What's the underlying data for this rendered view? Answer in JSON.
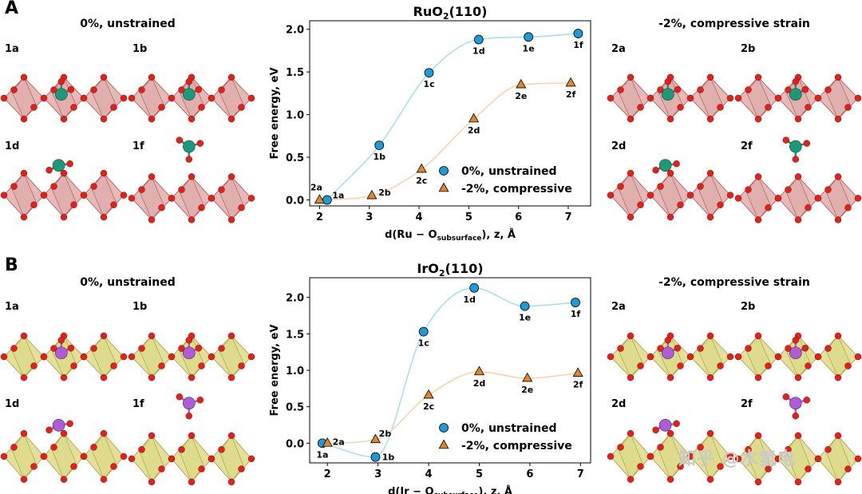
{
  "panels": [
    {
      "letter": "A",
      "left_title": "0%, unstrained",
      "right_title": "-2%, compressive strain",
      "left_subfigs": [
        "1a",
        "1b",
        "1d",
        "1f"
      ],
      "right_subfigs": [
        "2a",
        "2b",
        "2d",
        "2f"
      ],
      "metal": "Ru",
      "slab_color": "#d9a3a0",
      "slab_edge": "#b4504d",
      "metal_color": "#1b9a7a"
    },
    {
      "letter": "B",
      "left_title": "0%, unstrained",
      "right_title": "-2%, compressive strain",
      "left_subfigs": [
        "1a",
        "1b",
        "1d",
        "1f"
      ],
      "right_subfigs": [
        "2a",
        "2b",
        "2d",
        "2f"
      ],
      "metal": "Ir",
      "slab_color": "#d8d67a",
      "slab_edge": "#a89b3a",
      "metal_color": "#b05bd8"
    }
  ],
  "colors": {
    "unstrained_marker": "#1e9bd7",
    "compressive_marker": "#e0862f",
    "unstrained_curve": "#a9ddf0",
    "compressive_curve": "#f7d3ad",
    "oxygen": "#e0211c"
  },
  "chart_data": [
    {
      "type": "line",
      "title_main": "RuO",
      "title_sub": "2",
      "title_suffix": "(110)",
      "xlabel_main": "d(Ru − O",
      "xlabel_sub": "subsurface",
      "xlabel_suffix": "), z, Å",
      "ylabel": "Free energy, eV",
      "xlim": [
        1.8,
        7.45
      ],
      "ylim": [
        -0.07,
        2.1
      ],
      "xticks": [
        2,
        3,
        4,
        5,
        6,
        7
      ],
      "yticks": [
        0.0,
        0.5,
        1.0,
        1.5,
        2.0
      ],
      "ytick_labels": [
        "0.0",
        "0.5",
        "1.0",
        "1.5",
        "2.0"
      ],
      "legend_position": "lower-right",
      "series": [
        {
          "name": "0%, unstrained",
          "marker": "circle",
          "x": [
            2.15,
            3.2,
            4.2,
            5.2,
            6.2,
            7.2
          ],
          "y": [
            0.0,
            0.64,
            1.49,
            1.88,
            1.91,
            1.95
          ],
          "labels": [
            "1a",
            "1b",
            "1c",
            "1d",
            "1e",
            "1f"
          ]
        },
        {
          "name": "-2%, compressive",
          "marker": "triangle",
          "x": [
            2.0,
            3.05,
            4.05,
            5.1,
            6.05,
            7.05
          ],
          "y": [
            0.0,
            0.05,
            0.36,
            0.95,
            1.35,
            1.37
          ],
          "labels": [
            "2a",
            "2b",
            "2c",
            "2d",
            "2e",
            "2f"
          ]
        }
      ]
    },
    {
      "type": "line",
      "title_main": "IrO",
      "title_sub": "2",
      "title_suffix": "(110)",
      "xlabel_main": "d(Ir − O",
      "xlabel_sub": "subsurface",
      "xlabel_suffix": "), z, Å",
      "ylabel": "Free energy, eV",
      "xlim": [
        1.65,
        7.2
      ],
      "ylim": [
        -0.27,
        2.27
      ],
      "xticks": [
        2,
        3,
        4,
        5,
        6,
        7
      ],
      "yticks": [
        0.0,
        0.5,
        1.0,
        1.5,
        2.0
      ],
      "ytick_labels": [
        "0.0",
        "0.5",
        "1.0",
        "1.5",
        "2.0"
      ],
      "legend_position": "lower-right",
      "series": [
        {
          "name": "0%, unstrained",
          "marker": "circle",
          "x": [
            1.9,
            2.95,
            3.9,
            4.9,
            5.9,
            6.9
          ],
          "y": [
            0.0,
            -0.19,
            1.53,
            2.13,
            1.88,
            1.93
          ],
          "labels": [
            "1a",
            "1b",
            "1c",
            "1d",
            "1e",
            "1f"
          ]
        },
        {
          "name": "-2%, compressive",
          "marker": "triangle",
          "x": [
            2.0,
            2.95,
            4.0,
            5.0,
            5.95,
            6.95
          ],
          "y": [
            0.0,
            0.05,
            0.66,
            0.98,
            0.89,
            0.96
          ],
          "labels": [
            "2a",
            "2b",
            "2c",
            "2d",
            "2e",
            "2f"
          ]
        }
      ]
    }
  ],
  "watermark": "知乎 @水氢电"
}
